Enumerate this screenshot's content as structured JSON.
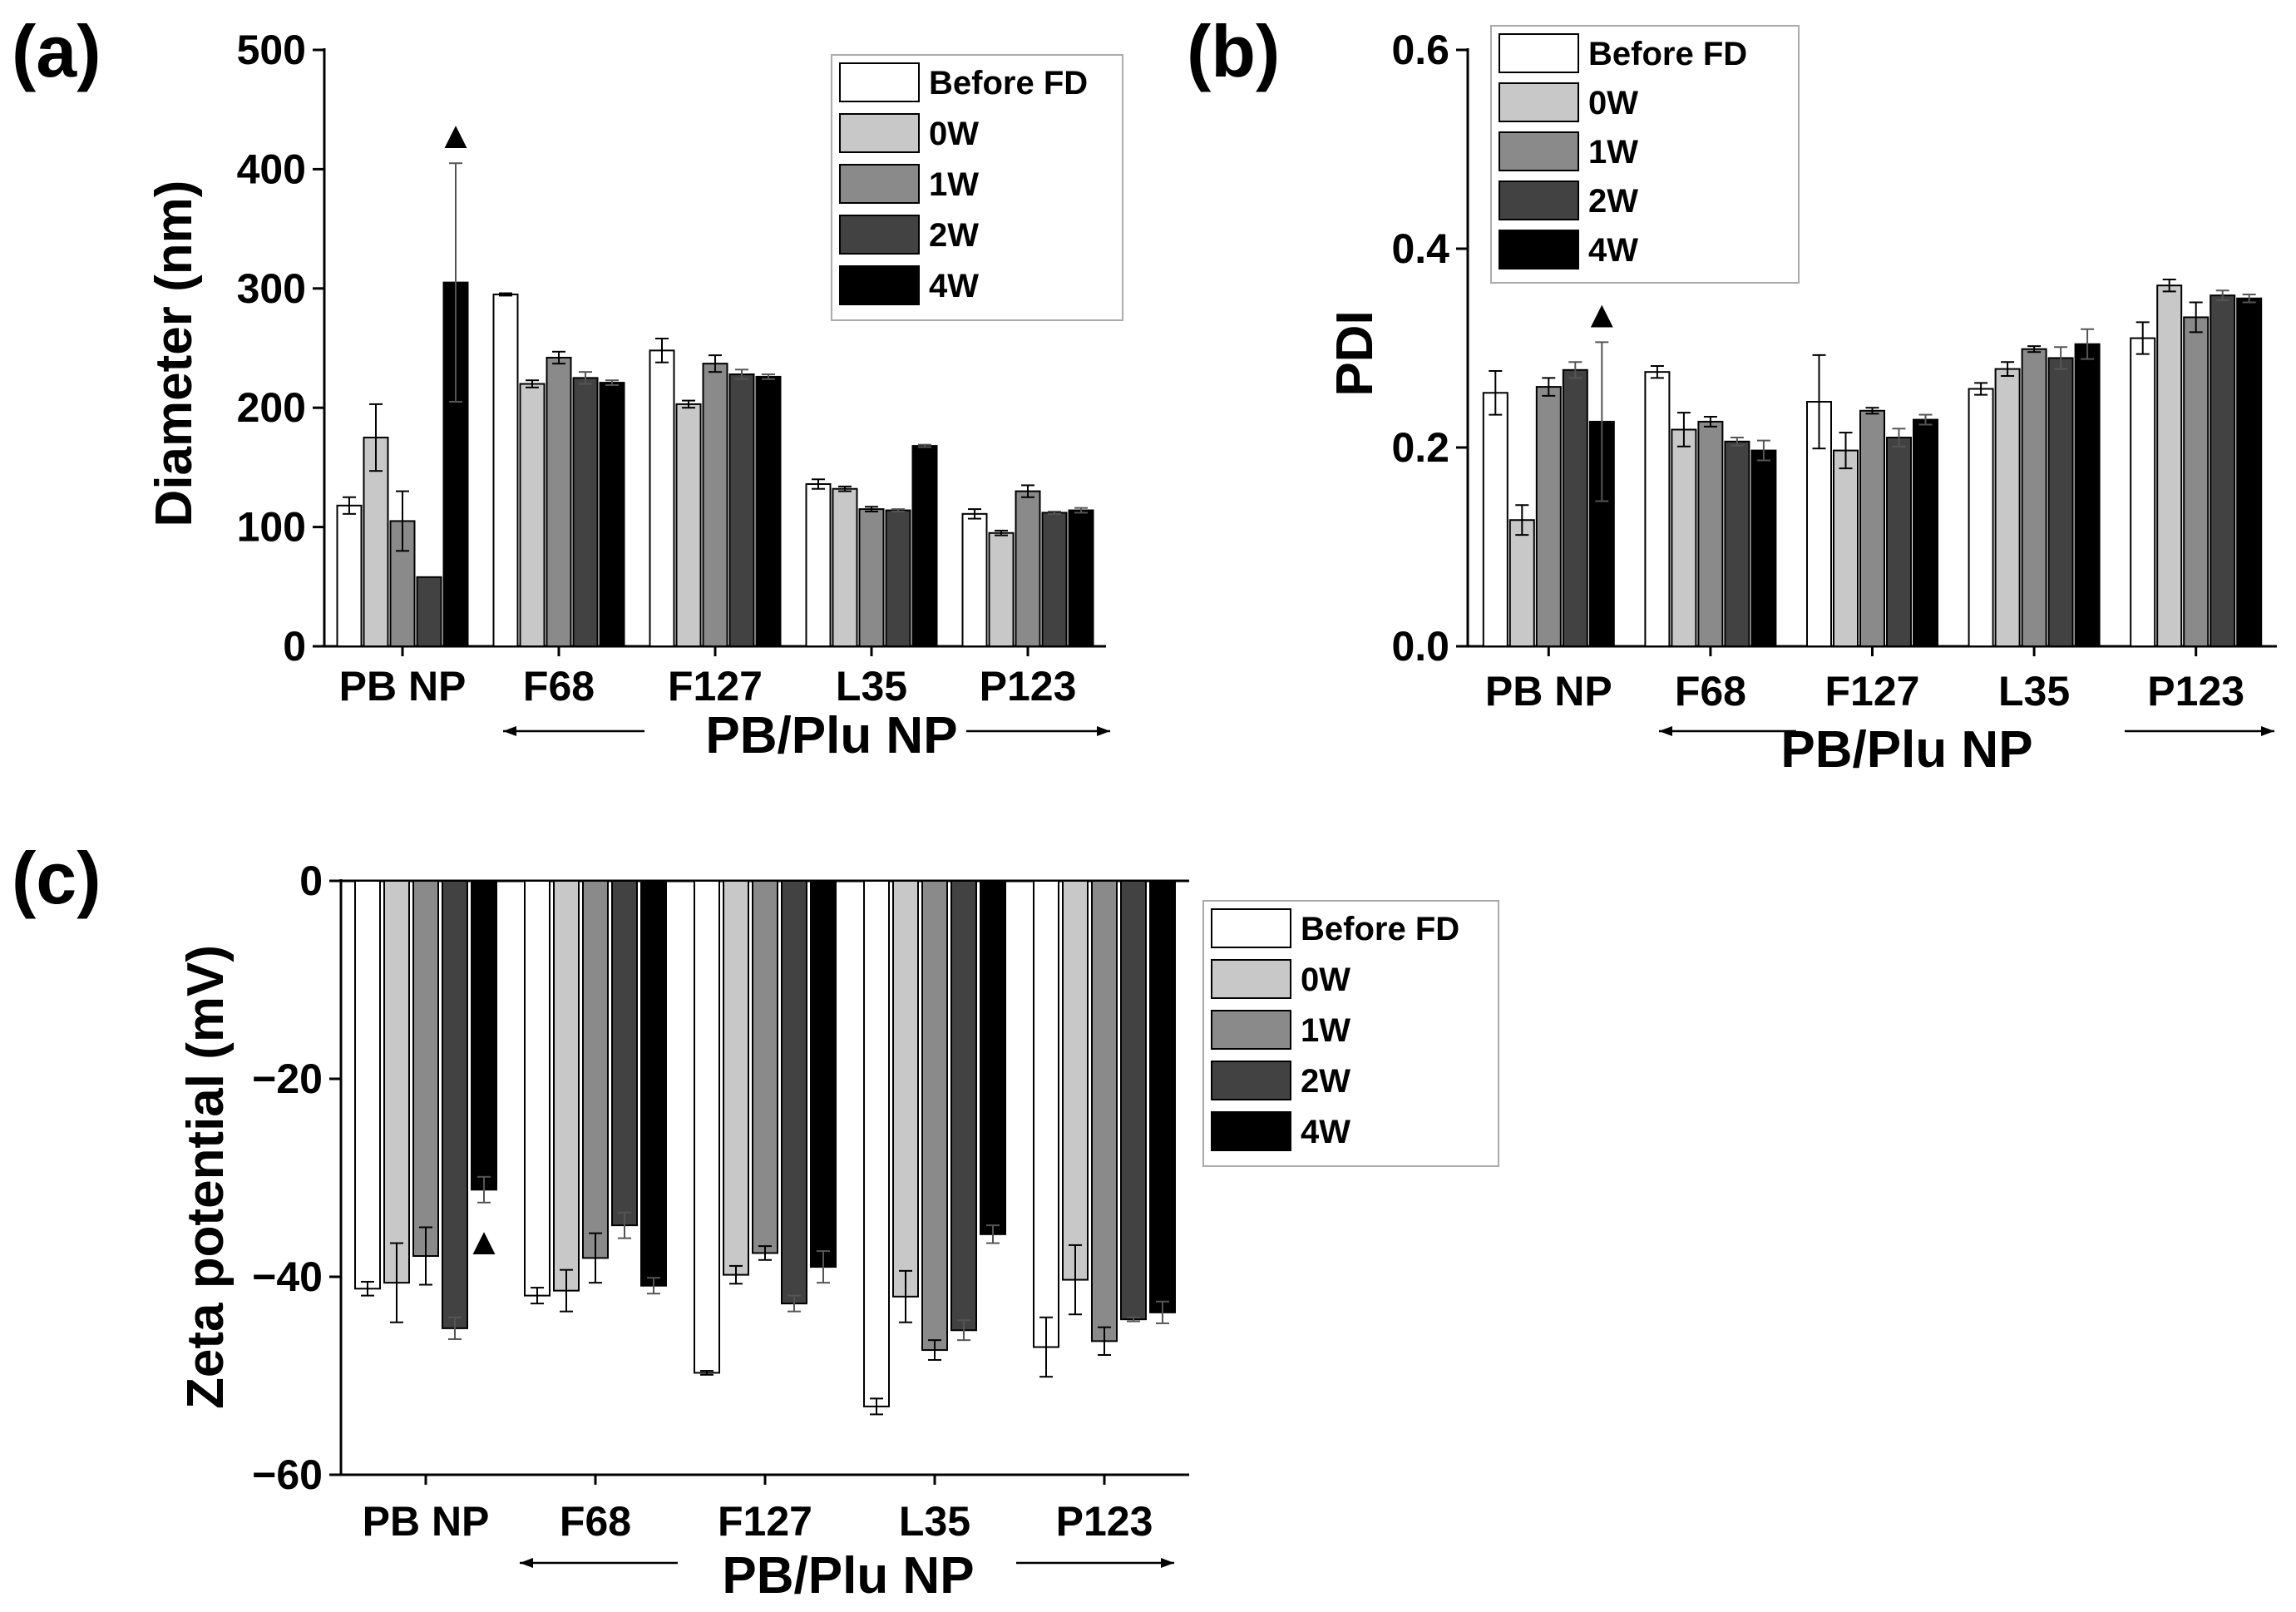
{
  "chart_data": [
    {
      "id": "a",
      "panel_label": "(a)",
      "type": "bar",
      "ylabel": "Diameter (nm)",
      "ylim": [
        0,
        500
      ],
      "yticks": [
        "0",
        "100",
        "200",
        "300",
        "400",
        "500"
      ],
      "categories": [
        "PB NP",
        "F68",
        "F127",
        "L35",
        "P123"
      ],
      "group_label": "PB/Plu NP",
      "series": [
        {
          "name": "Before FD",
          "color": "#ffffff",
          "values": [
            118,
            295,
            248,
            136,
            111
          ],
          "errors": [
            7,
            1,
            10,
            4,
            4
          ]
        },
        {
          "name": "0W",
          "color": "#c8c8c8",
          "values": [
            175,
            220,
            203,
            132,
            95
          ],
          "errors": [
            28,
            3,
            3,
            2,
            2
          ]
        },
        {
          "name": "1W",
          "color": "#8a8a8a",
          "values": [
            105,
            242,
            237,
            115,
            130
          ],
          "errors": [
            25,
            5,
            7,
            2,
            5
          ]
        },
        {
          "name": "2W",
          "color": "#424242",
          "values": [
            58,
            225,
            228,
            114,
            112
          ],
          "errors": [
            0,
            5,
            4,
            1,
            1
          ]
        },
        {
          "name": "4W",
          "color": "#000000",
          "values": [
            305,
            221,
            226,
            168,
            114
          ],
          "errors": [
            100,
            2,
            2,
            1,
            2
          ]
        }
      ],
      "marker": {
        "symbol": "▲",
        "category": "PB NP",
        "series": "4W"
      }
    },
    {
      "id": "b",
      "panel_label": "(b)",
      "type": "bar",
      "ylabel": "PDI",
      "ylim": [
        0,
        0.6
      ],
      "yticks": [
        "0.0",
        "0.2",
        "0.4",
        "0.6"
      ],
      "categories": [
        "PB NP",
        "F68",
        "F127",
        "L35",
        "P123"
      ],
      "group_label": "PB/Plu NP",
      "series": [
        {
          "name": "Before FD",
          "color": "#ffffff",
          "values": [
            0.255,
            0.276,
            0.246,
            0.259,
            0.31
          ],
          "errors": [
            0.022,
            0.006,
            0.047,
            0.006,
            0.016
          ]
        },
        {
          "name": "0W",
          "color": "#c8c8c8",
          "values": [
            0.127,
            0.218,
            0.197,
            0.279,
            0.363
          ],
          "errors": [
            0.015,
            0.017,
            0.018,
            0.007,
            0.006
          ]
        },
        {
          "name": "1W",
          "color": "#8a8a8a",
          "values": [
            0.261,
            0.226,
            0.237,
            0.299,
            0.331
          ],
          "errors": [
            0.009,
            0.005,
            0.003,
            0.003,
            0.015
          ]
        },
        {
          "name": "2W",
          "color": "#424242",
          "values": [
            0.278,
            0.206,
            0.21,
            0.29,
            0.353
          ],
          "errors": [
            0.008,
            0.004,
            0.009,
            0.011,
            0.005
          ]
        },
        {
          "name": "4W",
          "color": "#000000",
          "values": [
            0.226,
            0.197,
            0.228,
            0.304,
            0.35
          ],
          "errors": [
            0.08,
            0.01,
            0.005,
            0.015,
            0.004
          ]
        }
      ],
      "marker": {
        "symbol": "▲",
        "category": "PB NP",
        "series": "4W"
      }
    },
    {
      "id": "c",
      "panel_label": "(c)",
      "type": "bar",
      "ylabel": "Zeta potential (mV)",
      "ylim": [
        -60,
        0
      ],
      "yticks": [
        "−60",
        "−40",
        "−20",
        "0"
      ],
      "categories": [
        "PB NP",
        "F68",
        "F127",
        "L35",
        "P123"
      ],
      "group_label": "PB/Plu NP",
      "series": [
        {
          "name": "Before FD",
          "color": "#ffffff",
          "values": [
            -41.2,
            -41.9,
            -49.7,
            -53.1,
            -47.1
          ],
          "errors": [
            0.7,
            0.8,
            0.2,
            0.8,
            3.0
          ]
        },
        {
          "name": "0W",
          "color": "#c8c8c8",
          "values": [
            -40.6,
            -41.4,
            -39.8,
            -42.0,
            -40.3
          ],
          "errors": [
            4.0,
            2.1,
            0.9,
            2.6,
            3.5
          ]
        },
        {
          "name": "1W",
          "color": "#8a8a8a",
          "values": [
            -37.9,
            -38.1,
            -37.6,
            -47.4,
            -46.5
          ],
          "errors": [
            2.9,
            2.5,
            0.7,
            1.0,
            1.4
          ]
        },
        {
          "name": "2W",
          "color": "#424242",
          "values": [
            -45.2,
            -34.8,
            -42.7,
            -45.4,
            -44.3
          ],
          "errors": [
            1.1,
            1.3,
            0.8,
            1.0,
            0.2
          ]
        },
        {
          "name": "4W",
          "color": "#000000",
          "values": [
            -31.2,
            -40.9,
            -39.0,
            -35.7,
            -43.6
          ],
          "errors": [
            1.3,
            0.8,
            1.6,
            0.9,
            1.1
          ]
        }
      ],
      "marker": {
        "symbol": "▲",
        "category": "PB NP",
        "series": "4W"
      }
    }
  ]
}
